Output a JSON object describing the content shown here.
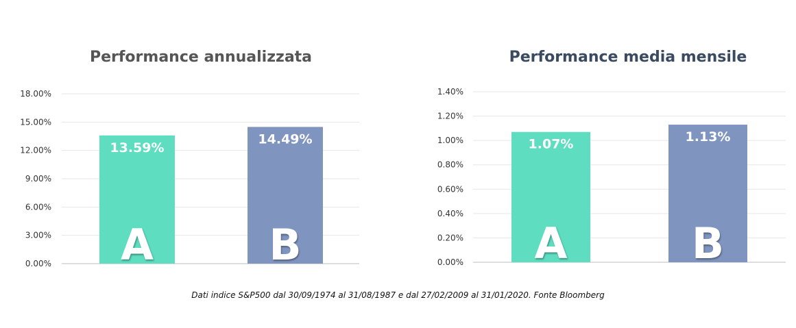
{
  "footnote": "Dati indice S&P500 dal 30/09/1974 al 31/08/1987 e dal 27/02/2009 al 31/01/2020. Fonte Bloomberg",
  "colors": {
    "bar_a": "#5EDDC0",
    "bar_b": "#7F95C0",
    "grid": "#e6e6e6",
    "title_left": "#555555",
    "title_right": "#3a4a60"
  },
  "chart_data": [
    {
      "type": "bar",
      "title": "Performance annualizzata",
      "categories": [
        "A",
        "B"
      ],
      "values": [
        13.59,
        14.49
      ],
      "data_labels": [
        "13.59%",
        "14.49%"
      ],
      "ylim": [
        0,
        18
      ],
      "yticks": [
        0,
        3,
        6,
        9,
        12,
        15,
        18
      ],
      "ytick_labels": [
        "0.00%",
        "3.00%",
        "6.00%",
        "9.00%",
        "12.00%",
        "15.00%",
        "18.00%"
      ],
      "grid": true,
      "xlabel": "",
      "ylabel": ""
    },
    {
      "type": "bar",
      "title": "Performance media mensile",
      "categories": [
        "A",
        "B"
      ],
      "values": [
        1.07,
        1.13
      ],
      "data_labels": [
        "1.07%",
        "1.13%"
      ],
      "ylim": [
        0,
        1.4
      ],
      "yticks": [
        0,
        0.2,
        0.4,
        0.6,
        0.8,
        1.0,
        1.2,
        1.4
      ],
      "ytick_labels": [
        "0.00%",
        "0.20%",
        "0.40%",
        "0.60%",
        "0.80%",
        "1.00%",
        "1.20%",
        "1.40%"
      ],
      "grid": true,
      "xlabel": "",
      "ylabel": ""
    }
  ]
}
